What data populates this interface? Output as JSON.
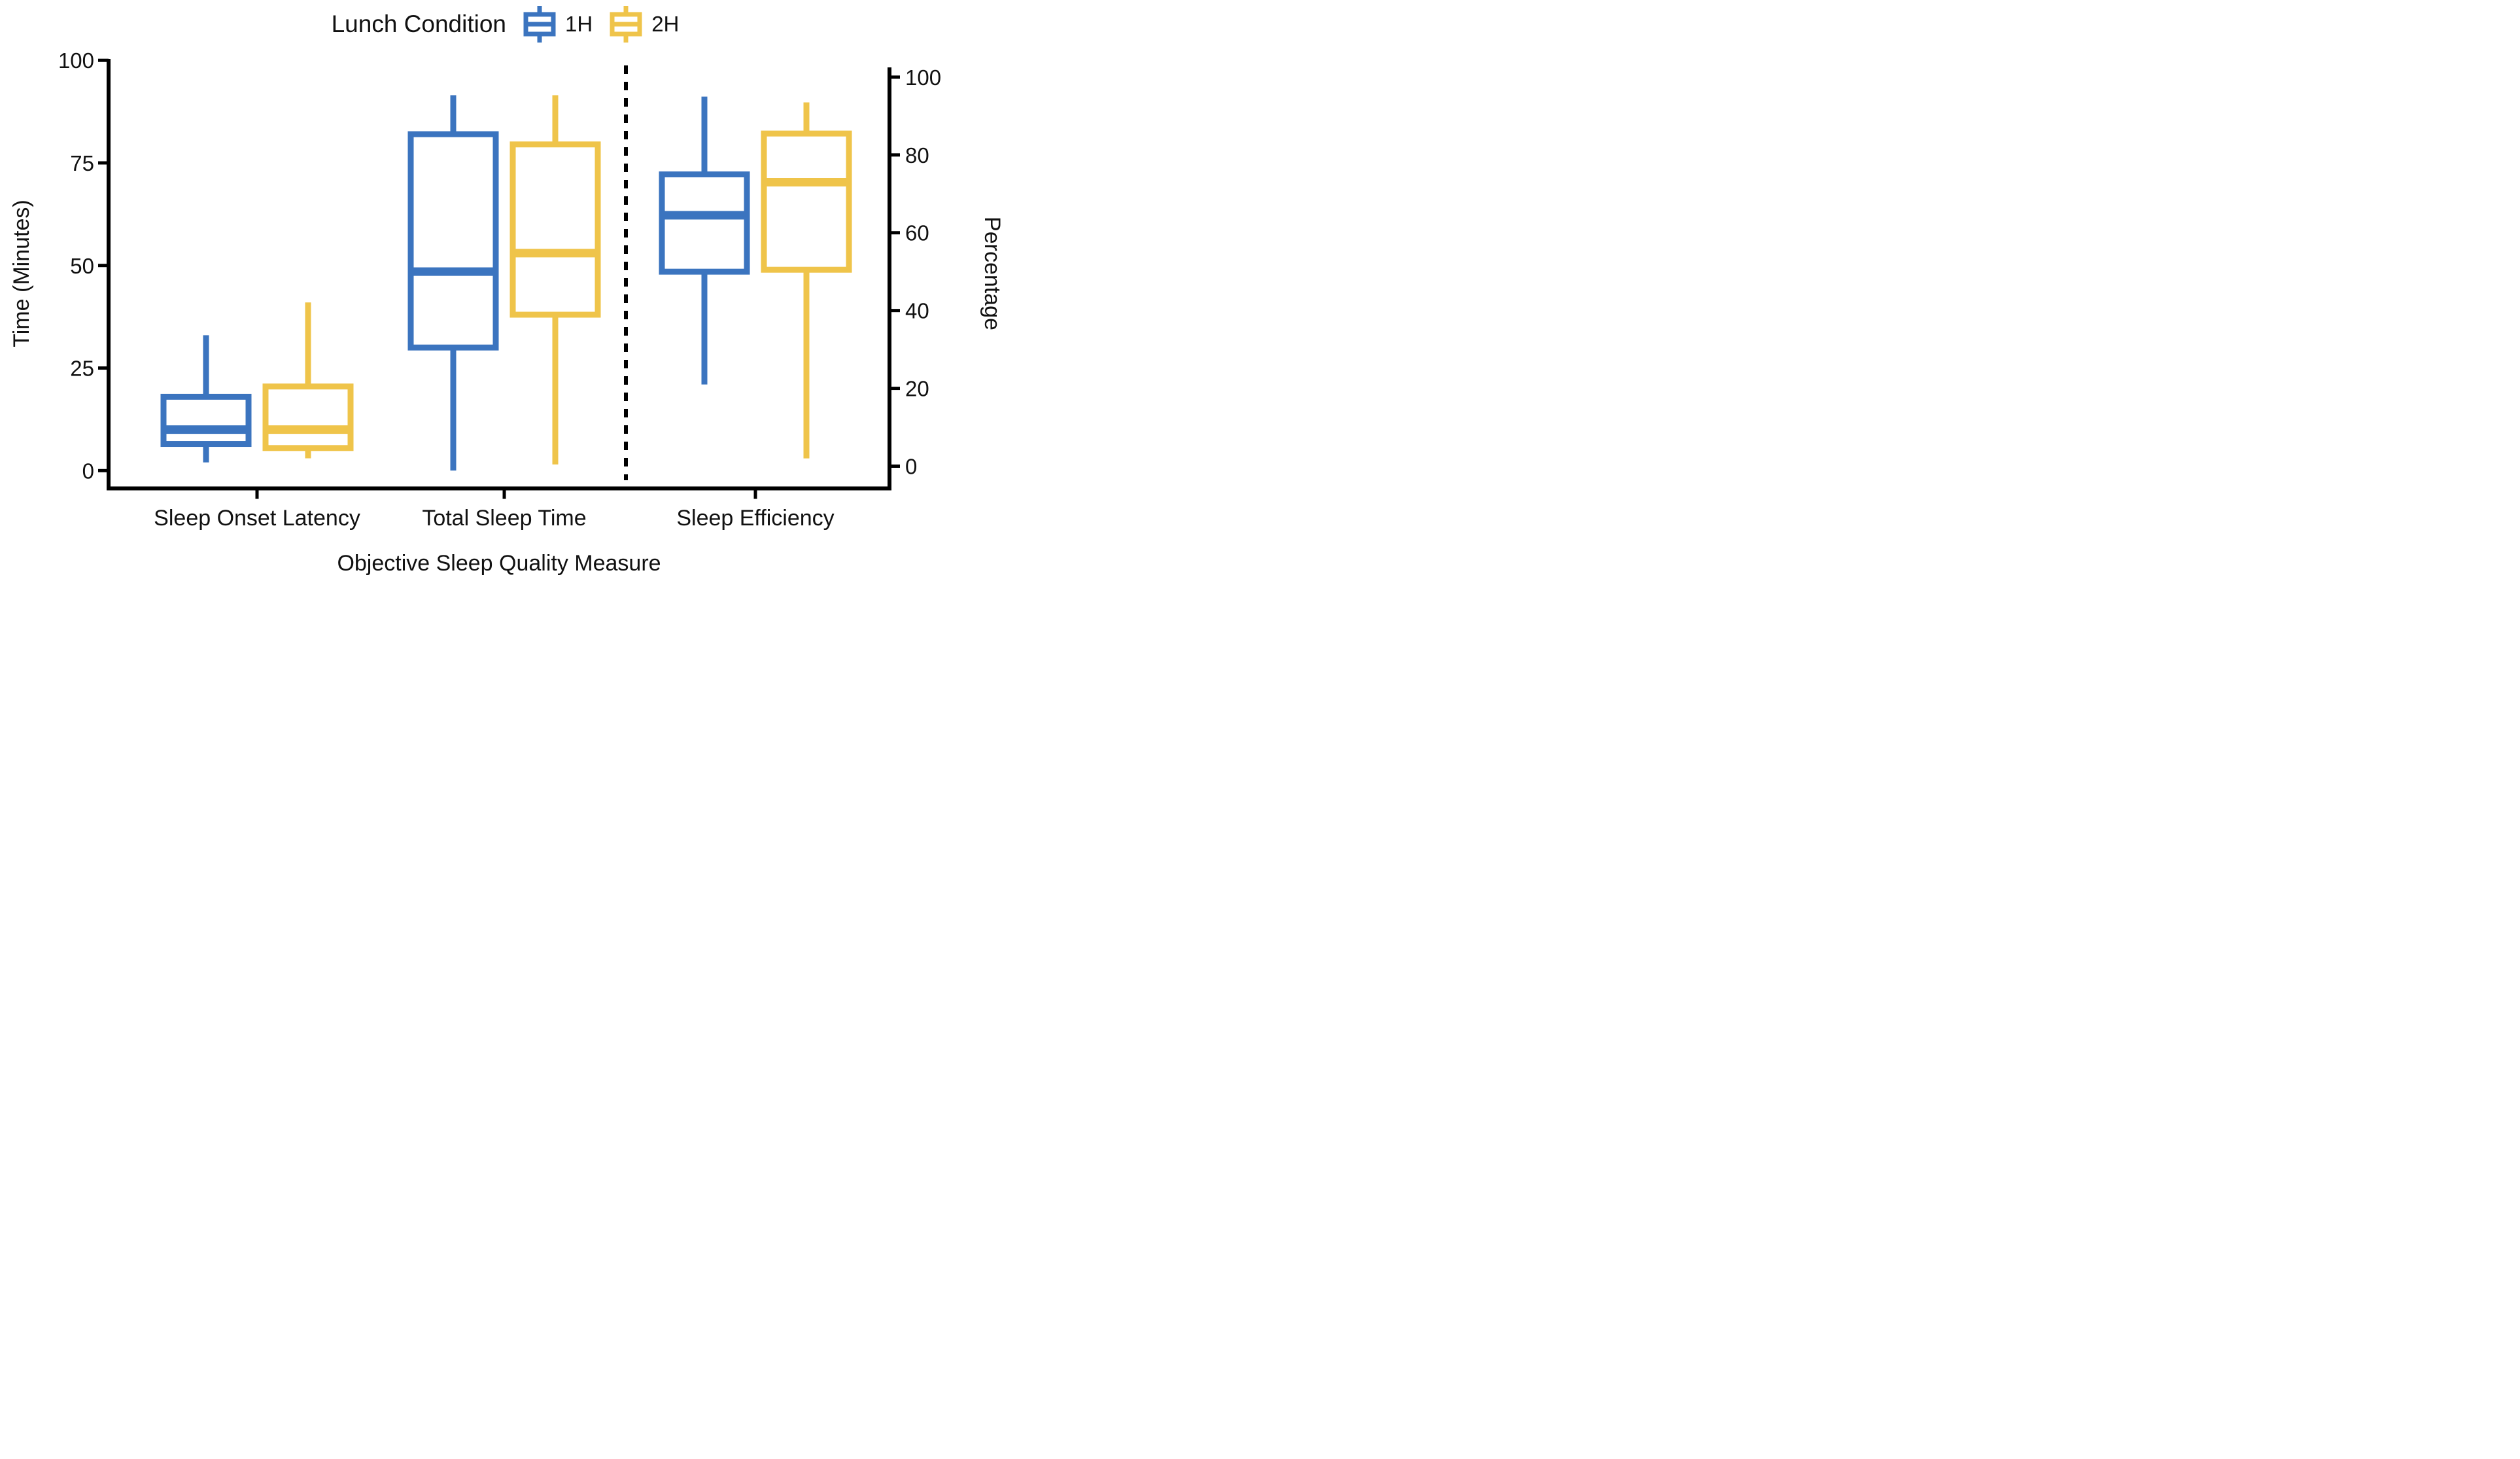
{
  "legend": {
    "title": "Lunch Condition",
    "items": [
      {
        "label": "1H",
        "color": "#3B74BF"
      },
      {
        "label": "2H",
        "color": "#EFC44A"
      }
    ]
  },
  "chart_data": {
    "type": "boxplot",
    "title": "",
    "xlabel": "Objective Sleep Quality Measure",
    "ylabel_left": "Time (Minutes)",
    "ylabel_right": "Percentage",
    "left_axis": {
      "label": "Time (Minutes)",
      "ticks": [
        0,
        25,
        50,
        75,
        100
      ],
      "range": [
        0,
        105
      ]
    },
    "right_axis": {
      "label": "Percentage",
      "ticks": [
        0,
        20,
        40,
        60,
        80,
        100
      ],
      "range": [
        0,
        105
      ]
    },
    "categories": [
      "Sleep Onset Latency",
      "Total Sleep Time",
      "Sleep Efficiency"
    ],
    "category_axis_scale": [
      "left",
      "left",
      "right"
    ],
    "grid": false,
    "legend_position": "top-center",
    "separator_after_category_index": 1,
    "series": [
      {
        "name": "1H",
        "color": "#3B74BF",
        "boxes": [
          {
            "category": "Sleep Onset Latency",
            "axis": "left",
            "min": 2,
            "q1": 6.5,
            "median": 10,
            "q3": 18,
            "max": 33
          },
          {
            "category": "Total Sleep Time",
            "axis": "left",
            "min": 0,
            "q1": 30,
            "median": 48.5,
            "q3": 82,
            "max": 91.5
          },
          {
            "category": "Sleep Efficiency",
            "axis": "right",
            "min": 21,
            "q1": 50,
            "median": 64.5,
            "q3": 75,
            "max": 95
          }
        ]
      },
      {
        "name": "2H",
        "color": "#EFC44A",
        "boxes": [
          {
            "category": "Sleep Onset Latency",
            "axis": "left",
            "min": 3,
            "q1": 5.5,
            "median": 10,
            "q3": 20.5,
            "max": 41
          },
          {
            "category": "Total Sleep Time",
            "axis": "left",
            "min": 1.5,
            "q1": 38,
            "median": 53,
            "q3": 79.5,
            "max": 91.5
          },
          {
            "category": "Sleep Efficiency",
            "axis": "right",
            "min": 2,
            "q1": 50.5,
            "median": 73,
            "q3": 85.5,
            "max": 93.5
          }
        ]
      }
    ]
  }
}
